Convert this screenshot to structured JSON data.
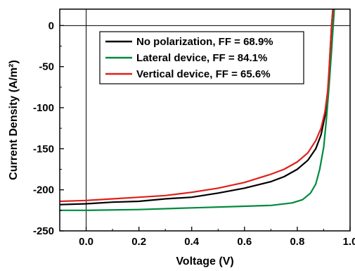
{
  "chart_data": {
    "type": "line",
    "xlabel": "Voltage (V)",
    "ylabel": "Current Density (A/m²)",
    "xlim": [
      -0.1,
      1.0
    ],
    "ylim": [
      -250,
      20
    ],
    "x_ticks": [
      0.0,
      0.2,
      0.4,
      0.6,
      0.8,
      1.0
    ],
    "x_tick_labels": [
      "0.0",
      "0.2",
      "0.4",
      "0.6",
      "0.8",
      "1.0"
    ],
    "y_ticks": [
      0,
      -50,
      -100,
      -150,
      -200,
      -250
    ],
    "y_tick_labels": [
      "0",
      "-50",
      "-100",
      "-150",
      "-200",
      "-250"
    ],
    "reference_lines": {
      "x": 0,
      "y": 0
    },
    "legend_position": "top-center",
    "series": [
      {
        "name": "No polarization, FF = 68.9%",
        "color": "#000000",
        "points": [
          [
            -0.1,
            -218
          ],
          [
            0.0,
            -217
          ],
          [
            0.1,
            -215
          ],
          [
            0.2,
            -214
          ],
          [
            0.3,
            -211
          ],
          [
            0.4,
            -209
          ],
          [
            0.5,
            -204
          ],
          [
            0.6,
            -198
          ],
          [
            0.7,
            -190
          ],
          [
            0.75,
            -184
          ],
          [
            0.8,
            -175
          ],
          [
            0.84,
            -164
          ],
          [
            0.87,
            -150
          ],
          [
            0.89,
            -133
          ],
          [
            0.905,
            -110
          ],
          [
            0.915,
            -85
          ],
          [
            0.92,
            -60
          ],
          [
            0.925,
            -30
          ],
          [
            0.93,
            0
          ],
          [
            0.935,
            20
          ]
        ]
      },
      {
        "name": "Lateral device, FF = 84.1%",
        "color": "#008a3e",
        "points": [
          [
            -0.1,
            -225
          ],
          [
            0.0,
            -225
          ],
          [
            0.2,
            -224
          ],
          [
            0.4,
            -222
          ],
          [
            0.6,
            -220
          ],
          [
            0.7,
            -219
          ],
          [
            0.78,
            -216
          ],
          [
            0.82,
            -212
          ],
          [
            0.85,
            -204
          ],
          [
            0.87,
            -193
          ],
          [
            0.885,
            -175
          ],
          [
            0.9,
            -148
          ],
          [
            0.91,
            -115
          ],
          [
            0.92,
            -75
          ],
          [
            0.93,
            -30
          ],
          [
            0.935,
            -5
          ],
          [
            0.94,
            20
          ]
        ]
      },
      {
        "name": "Vertical device, FF = 65.6%",
        "color": "#e0201b",
        "points": [
          [
            -0.1,
            -214
          ],
          [
            0.0,
            -213
          ],
          [
            0.1,
            -211
          ],
          [
            0.2,
            -209
          ],
          [
            0.3,
            -207
          ],
          [
            0.4,
            -203
          ],
          [
            0.5,
            -198
          ],
          [
            0.6,
            -191
          ],
          [
            0.7,
            -181
          ],
          [
            0.75,
            -175
          ],
          [
            0.8,
            -166
          ],
          [
            0.84,
            -155
          ],
          [
            0.87,
            -140
          ],
          [
            0.89,
            -125
          ],
          [
            0.905,
            -105
          ],
          [
            0.915,
            -80
          ],
          [
            0.92,
            -55
          ],
          [
            0.925,
            -28
          ],
          [
            0.93,
            0
          ],
          [
            0.935,
            20
          ]
        ]
      }
    ]
  }
}
